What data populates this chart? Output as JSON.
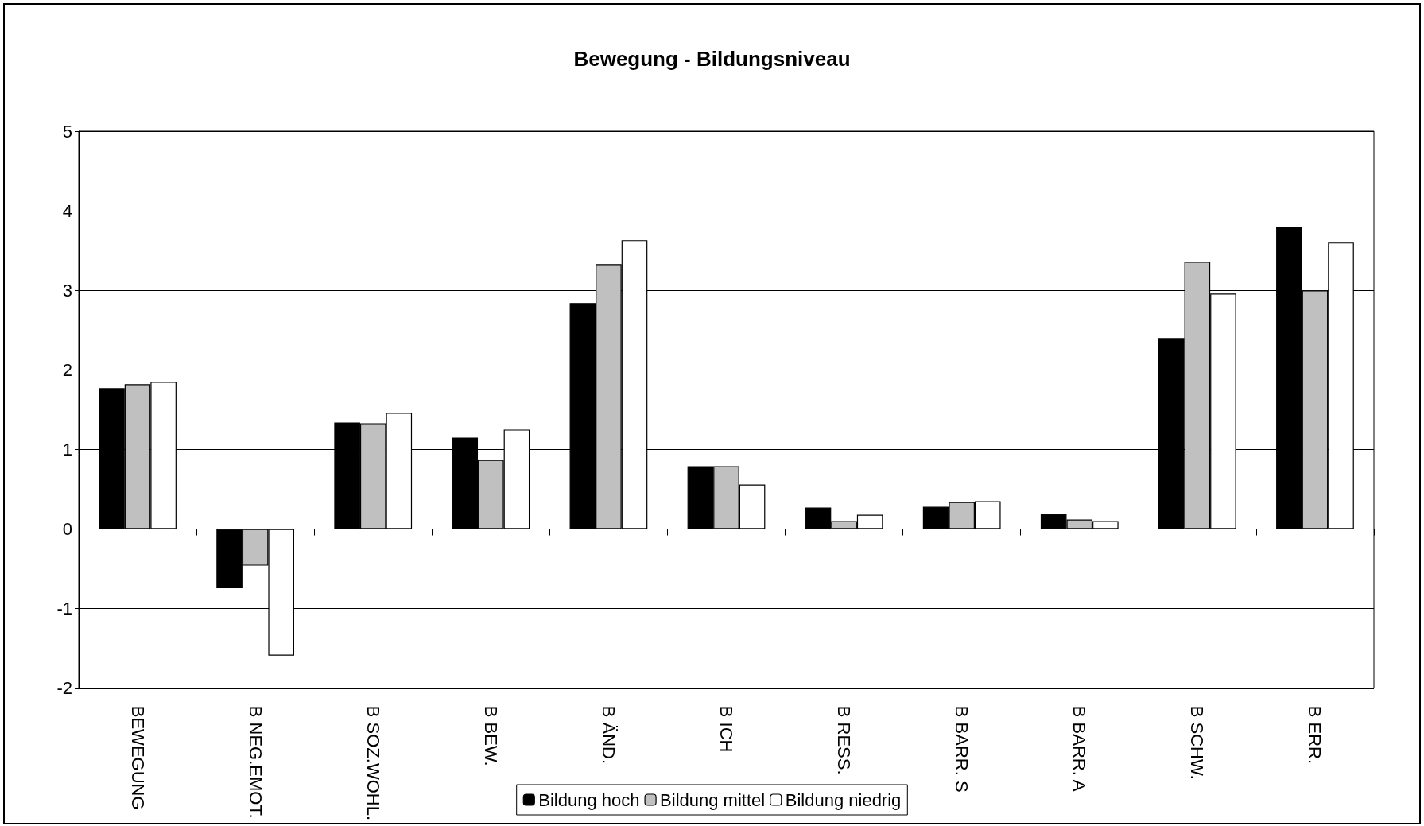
{
  "chart_data": {
    "type": "bar",
    "title": "Bewegung - Bildungsniveau",
    "categories": [
      "BEWEGUNG",
      "B NEG.EMOT.",
      "B SOZ.WOHL.",
      "B BEW.",
      "B ÄND.",
      "B ICH",
      "B RESS.",
      "B BARR. S",
      "B BARR. A",
      "B SCHW.",
      "B ERR."
    ],
    "series": [
      {
        "name": "Bildung hoch",
        "color": "#000000",
        "values": [
          1.77,
          -0.74,
          1.34,
          1.15,
          2.84,
          0.79,
          0.27,
          0.28,
          0.19,
          2.4,
          3.8
        ]
      },
      {
        "name": "Bildung mittel",
        "color": "#c0c0c0",
        "values": [
          1.82,
          -0.46,
          1.33,
          0.87,
          3.33,
          0.79,
          0.1,
          0.34,
          0.12,
          3.36,
          3.0
        ]
      },
      {
        "name": "Bildung niedrig",
        "color": "#ffffff",
        "values": [
          1.85,
          -1.59,
          1.46,
          1.25,
          3.63,
          0.56,
          0.18,
          0.35,
          0.1,
          2.96,
          3.6
        ]
      }
    ],
    "ylim": [
      -2,
      5
    ],
    "yticks": [
      -2,
      -1,
      0,
      1,
      2,
      3,
      4,
      5
    ],
    "grid": "y",
    "legend": "bottom"
  }
}
